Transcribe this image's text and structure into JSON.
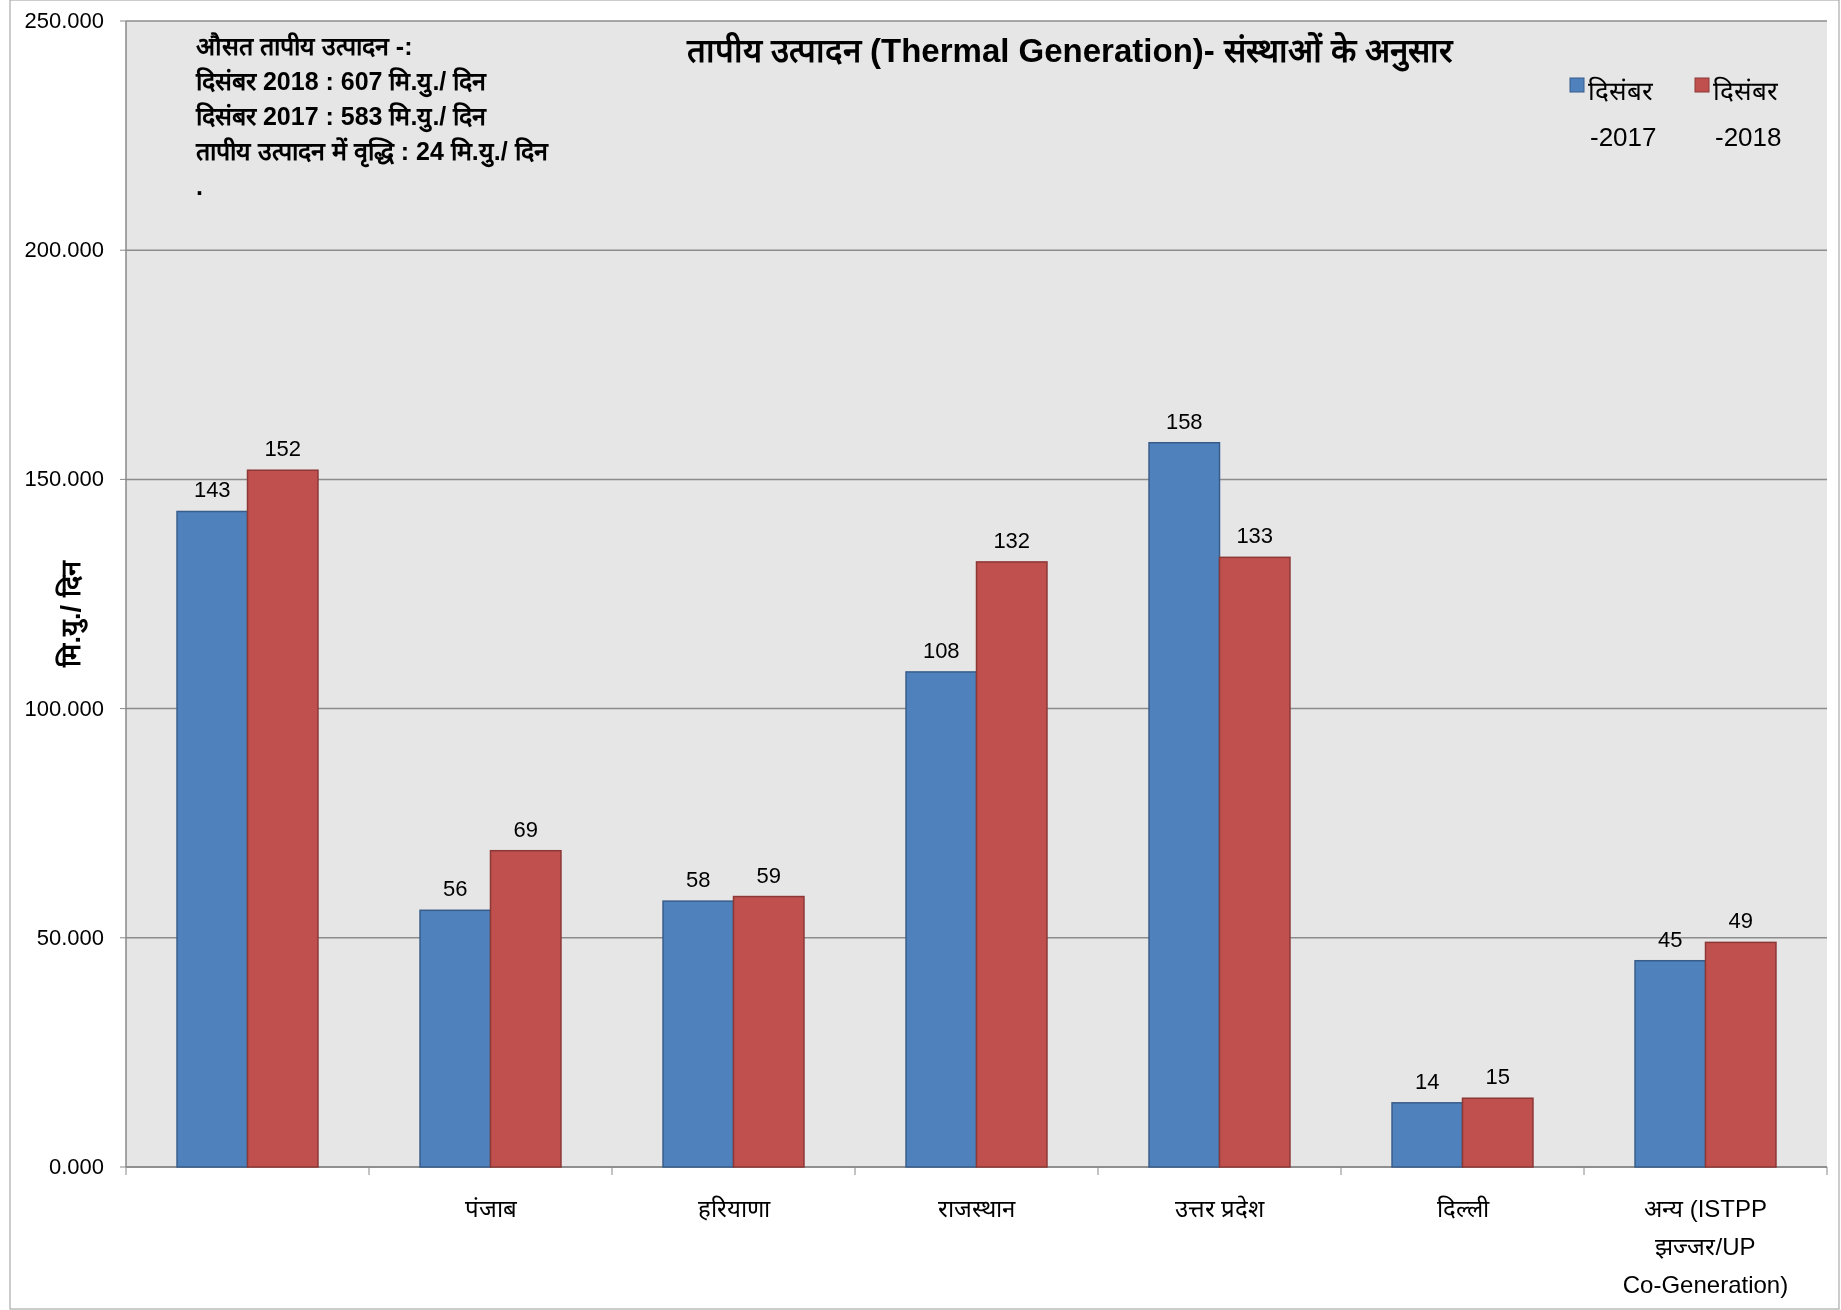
{
  "chart_data": {
    "type": "bar",
    "title": "तापीय उत्पादन  (Thermal Generation)- संस्थाओं  के  अनुसार",
    "ylabel": "मि.यु./ दिन",
    "annotations": [
      "औसत तापीय उत्पादन -:",
      "दिसंबर 2018 : 607 मि.यु./  दिन",
      "दिसंबर 2017  : 583  मि.यु./  दिन",
      "तापीय उत्पादन में वृद्धि : 24  मि.यु./  दिन",
      "."
    ],
    "categories": [
      null,
      "पंजाब",
      "हरियाणा",
      "राजस्थान",
      "उत्तर  प्रदेश",
      "दिल्ली",
      "अन्य (ISTPP झज्जर/UP Co-Generation)"
    ],
    "series": [
      {
        "name": "दिसंबर -2017",
        "color": "#4f81bd",
        "values": [
          143,
          56,
          58,
          108,
          158,
          14,
          45
        ]
      },
      {
        "name": "दिसंबर -2018",
        "color": "#c0504d",
        "values": [
          152,
          69,
          59,
          132,
          133,
          15,
          49
        ]
      }
    ],
    "data_labels": true,
    "legend": "top right",
    "grid": "y",
    "ylim": [
      0,
      250
    ],
    "yticks": [
      {
        "value": 0,
        "label": "0.000"
      },
      {
        "value": 50,
        "label": "50.000"
      },
      {
        "value": 100,
        "label": "100.000"
      },
      {
        "value": 150,
        "label": "150.000"
      },
      {
        "value": 200,
        "label": "200.000"
      },
      {
        "value": 250,
        "label": "250.000"
      }
    ]
  }
}
